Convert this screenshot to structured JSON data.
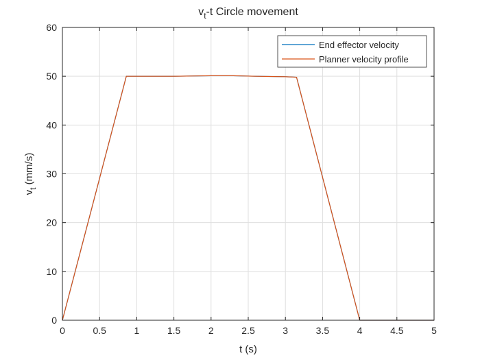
{
  "chart_data": {
    "type": "line",
    "title_main": "v",
    "title_sub": "t",
    "title_rest": "-t Circle movement",
    "xlabel": "t (s)",
    "ylabel_main": "v",
    "ylabel_sub": "t",
    "ylabel_rest": " (mm/s)",
    "xlim": [
      0,
      5
    ],
    "ylim": [
      0,
      60
    ],
    "xticks": [
      0,
      0.5,
      1,
      1.5,
      2,
      2.5,
      3,
      3.5,
      4,
      4.5,
      5
    ],
    "xtick_labels": [
      "0",
      "0.5",
      "1",
      "1.5",
      "2",
      "2.5",
      "3",
      "3.5",
      "4",
      "4.5",
      "5"
    ],
    "yticks": [
      0,
      10,
      20,
      30,
      40,
      50,
      60
    ],
    "ytick_labels": [
      "0",
      "10",
      "20",
      "30",
      "40",
      "50",
      "60"
    ],
    "grid": true,
    "legend_position": "top-right",
    "series": [
      {
        "name": "End effector velocity",
        "color": "#0072BD",
        "x": [
          0,
          0.86,
          1.5,
          2.0,
          2.3,
          2.6,
          3.0,
          3.15,
          4.0,
          5.0
        ],
        "y": [
          0,
          50.0,
          50.0,
          50.1,
          50.1,
          50.0,
          49.9,
          49.8,
          0,
          0
        ]
      },
      {
        "name": "Planner velocity profile",
        "color": "#D95319",
        "x": [
          0,
          0.86,
          1.5,
          2.0,
          2.3,
          2.6,
          3.0,
          3.15,
          4.0,
          5.0
        ],
        "y": [
          0,
          50.0,
          50.0,
          50.1,
          50.1,
          50.0,
          49.9,
          49.8,
          0,
          0
        ]
      }
    ]
  }
}
